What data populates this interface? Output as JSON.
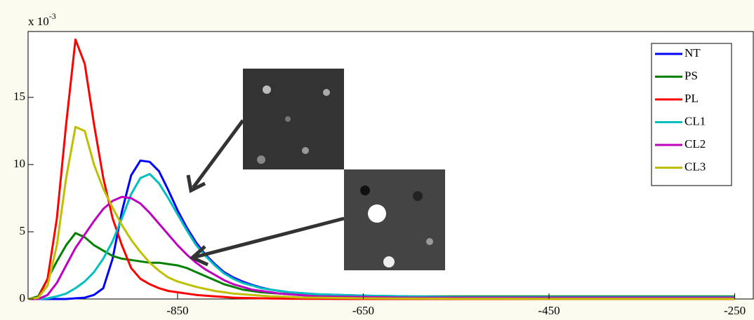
{
  "chart_data": {
    "type": "line",
    "y_multiplier": {
      "base": "x 10",
      "exponent": "-3"
    },
    "x": [
      -1010,
      -1000,
      -990,
      -980,
      -970,
      -960,
      -950,
      -940,
      -930,
      -920,
      -910,
      -900,
      -890,
      -880,
      -870,
      -860,
      -850,
      -840,
      -830,
      -820,
      -810,
      -800,
      -790,
      -780,
      -770,
      -760,
      -750,
      -740,
      -730,
      -720,
      -710,
      -700,
      -650,
      -600,
      -550,
      -500,
      -450,
      -400,
      -350,
      -300,
      -250
    ],
    "series": [
      {
        "name": "NT",
        "color": "#0000ff",
        "values": [
          0,
          0,
          0,
          0,
          0,
          0.05,
          0.1,
          0.3,
          0.8,
          3,
          6.5,
          9.2,
          10.3,
          10.2,
          9.5,
          8.1,
          6.6,
          5.3,
          4.2,
          3.3,
          2.6,
          2,
          1.6,
          1.3,
          1.05,
          0.85,
          0.7,
          0.6,
          0.5,
          0.45,
          0.4,
          0.35,
          0.25,
          0.15,
          0.1,
          0.1,
          0.1,
          0.1,
          0.1,
          0.1,
          0.1
        ]
      },
      {
        "name": "PS",
        "color": "#008000",
        "values": [
          0,
          0.2,
          1.5,
          2.8,
          4,
          4.9,
          4.6,
          4,
          3.6,
          3.2,
          3,
          2.9,
          2.8,
          2.7,
          2.7,
          2.6,
          2.5,
          2.3,
          2,
          1.7,
          1.4,
          1.1,
          0.9,
          0.7,
          0.6,
          0.5,
          0.45,
          0.4,
          0.35,
          0.3,
          0.3,
          0.3,
          0.25,
          0.2,
          0.2,
          0.2,
          0.2,
          0.2,
          0.2,
          0.2,
          0.2
        ]
      },
      {
        "name": "PL",
        "color": "#ff0000",
        "values": [
          0,
          0.1,
          1.5,
          6,
          13,
          19.3,
          17.5,
          13,
          9,
          6,
          4,
          2.3,
          1.5,
          1.1,
          0.8,
          0.6,
          0.5,
          0.4,
          0.3,
          0.25,
          0.2,
          0.15,
          0.1,
          0.08,
          0.06,
          0.05,
          0.04,
          0.03,
          0.02,
          0.02,
          0.01,
          0.01,
          0,
          0,
          0,
          0,
          0,
          0,
          0,
          0,
          0
        ]
      },
      {
        "name": "CL1",
        "color": "#00bfbf",
        "values": [
          0,
          0,
          0.05,
          0.2,
          0.4,
          0.8,
          1.3,
          2,
          3,
          4.3,
          6,
          7.8,
          9,
          9.3,
          8.6,
          7.5,
          6.3,
          5.1,
          4,
          3.2,
          2.5,
          1.9,
          1.5,
          1.2,
          1,
          0.8,
          0.7,
          0.6,
          0.5,
          0.45,
          0.4,
          0.35,
          0.25,
          0.2,
          0.15,
          0.15,
          0.15,
          0.15,
          0.15,
          0.15,
          0.15
        ]
      },
      {
        "name": "CL2",
        "color": "#bf00bf",
        "values": [
          0,
          0,
          0.3,
          1.2,
          2.5,
          3.8,
          4.8,
          5.8,
          6.7,
          7.3,
          7.6,
          7.5,
          7.1,
          6.4,
          5.6,
          4.8,
          4,
          3.3,
          2.7,
          2.2,
          1.8,
          1.4,
          1.1,
          0.9,
          0.7,
          0.6,
          0.5,
          0.4,
          0.35,
          0.3,
          0.25,
          0.2,
          0.15,
          0.1,
          0.1,
          0.1,
          0.1,
          0.1,
          0.1,
          0.1,
          0.1
        ]
      },
      {
        "name": "CL3",
        "color": "#bfbf00",
        "values": [
          0,
          0.1,
          1,
          4,
          9,
          12.8,
          12.5,
          10,
          8.2,
          6.8,
          5.5,
          4.4,
          3.5,
          2.7,
          2.1,
          1.6,
          1.3,
          1.1,
          0.9,
          0.75,
          0.6,
          0.5,
          0.4,
          0.35,
          0.3,
          0.25,
          0.2,
          0.18,
          0.15,
          0.12,
          0.1,
          0.1,
          0.05,
          0.03,
          0.02,
          0.02,
          0.01,
          0.01,
          0.01,
          0.01,
          0.01
        ]
      }
    ],
    "xlim": [
      -1011,
      -230
    ],
    "xticks": [
      -850,
      -650,
      -450,
      -250
    ],
    "ylim": [
      0,
      19.9
    ],
    "yticks": [
      0,
      5,
      10,
      15
    ],
    "legend": "upper right"
  }
}
